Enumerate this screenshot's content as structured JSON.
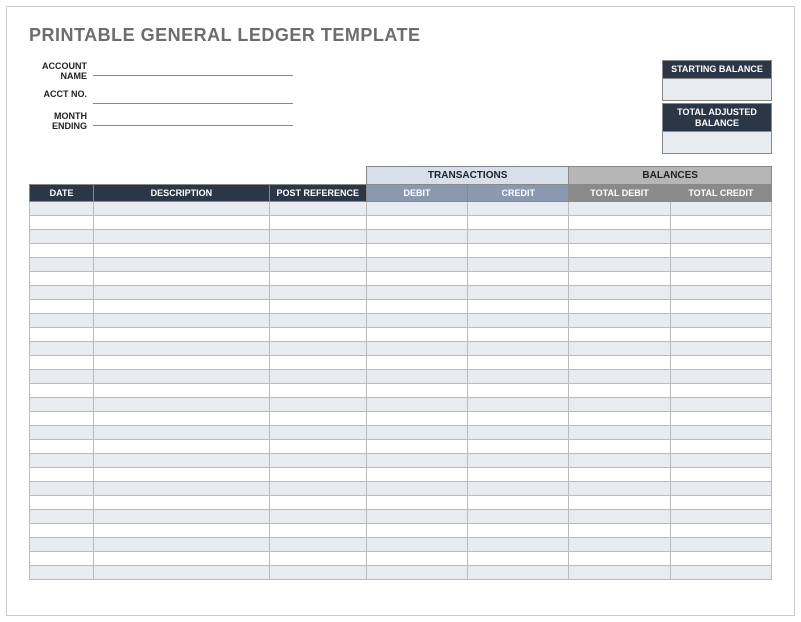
{
  "title": "PRINTABLE GENERAL LEDGER TEMPLATE",
  "account_fields": {
    "name_label": "ACCOUNT NAME",
    "acct_no_label": "ACCT NO.",
    "month_ending_label": "MONTH ENDING",
    "name_value": "",
    "acct_no_value": "",
    "month_ending_value": ""
  },
  "balance_boxes": {
    "starting_label": "STARTING BALANCE",
    "starting_value": "",
    "adjusted_label": "TOTAL ADJUSTED BALANCE",
    "adjusted_value": ""
  },
  "table": {
    "super_headers": {
      "transactions": "TRANSACTIONS",
      "balances": "BALANCES"
    },
    "columns": {
      "date": "DATE",
      "description": "DESCRIPTION",
      "post_reference": "POST REFERENCE",
      "debit": "DEBIT",
      "credit": "CREDIT",
      "total_debit": "TOTAL DEBIT",
      "total_credit": "TOTAL CREDIT"
    },
    "row_count": 27,
    "colors": {
      "header_dark": "#2b3647",
      "header_blue": "#8b99b0",
      "header_gray": "#8a8a8a",
      "super_trans": "#d7dfec",
      "super_bal": "#b6b6b6",
      "row_odd": "#e8ebef",
      "row_even": "#ffffff",
      "border": "#bbbbbb"
    }
  }
}
